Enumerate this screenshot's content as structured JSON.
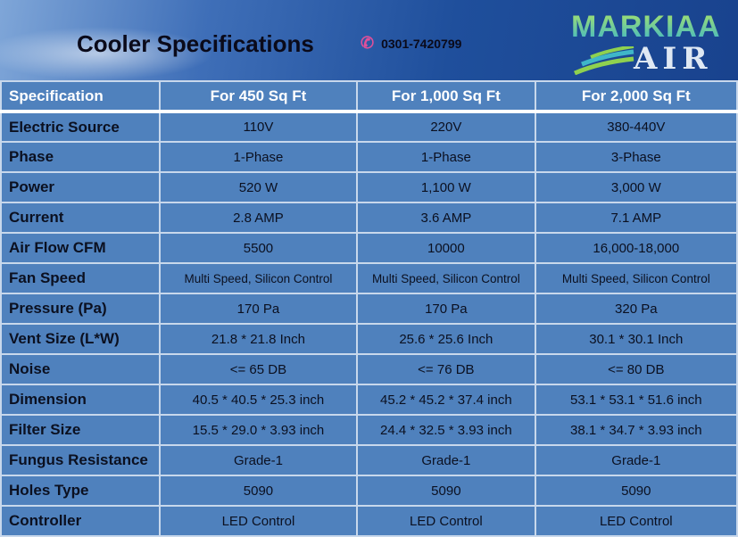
{
  "title": "Cooler Specifications",
  "phone": "0301-7420799",
  "logo": {
    "line1": "MARKIAA",
    "line2": "AIR"
  },
  "table": {
    "headers": [
      "Specification",
      "For 450 Sq Ft",
      "For 1,000 Sq Ft",
      "For 2,000 Sq Ft"
    ],
    "rows": [
      [
        "Electric Source",
        "110V",
        "220V",
        "380-440V"
      ],
      [
        "Phase",
        "1-Phase",
        "1-Phase",
        "3-Phase"
      ],
      [
        "Power",
        "520 W",
        "1,100 W",
        "3,000 W"
      ],
      [
        "Current",
        "2.8 AMP",
        "3.6 AMP",
        "7.1 AMP"
      ],
      [
        "Air Flow CFM",
        "5500",
        "10000",
        "16,000-18,000"
      ],
      [
        "Fan Speed",
        "Multi Speed, Silicon Control",
        "Multi Speed, Silicon Control",
        "Multi Speed, Silicon Control"
      ],
      [
        "Pressure (Pa)",
        "170 Pa",
        "170 Pa",
        "320 Pa"
      ],
      [
        "Vent Size (L*W)",
        "21.8 * 21.8 Inch",
        "25.6 * 25.6 Inch",
        "30.1 * 30.1 Inch"
      ],
      [
        "Noise",
        "<= 65 DB",
        "<= 76 DB",
        "<= 80 DB"
      ],
      [
        "Dimension",
        "40.5 * 40.5 * 25.3 inch",
        "45.2 * 45.2 * 37.4 inch",
        "53.1 * 53.1 * 51.6 inch"
      ],
      [
        "Filter Size",
        "15.5 * 29.0 * 3.93 inch",
        "24.4 * 32.5 * 3.93 inch",
        "38.1 * 34.7 * 3.93 inch"
      ],
      [
        "Fungus Resistance",
        "Grade-1",
        "Grade-1",
        "Grade-1"
      ],
      [
        "Holes Type",
        "5090",
        "5090",
        "5090"
      ],
      [
        "Controller",
        "LED Control",
        "LED Control",
        "LED Control"
      ]
    ]
  }
}
